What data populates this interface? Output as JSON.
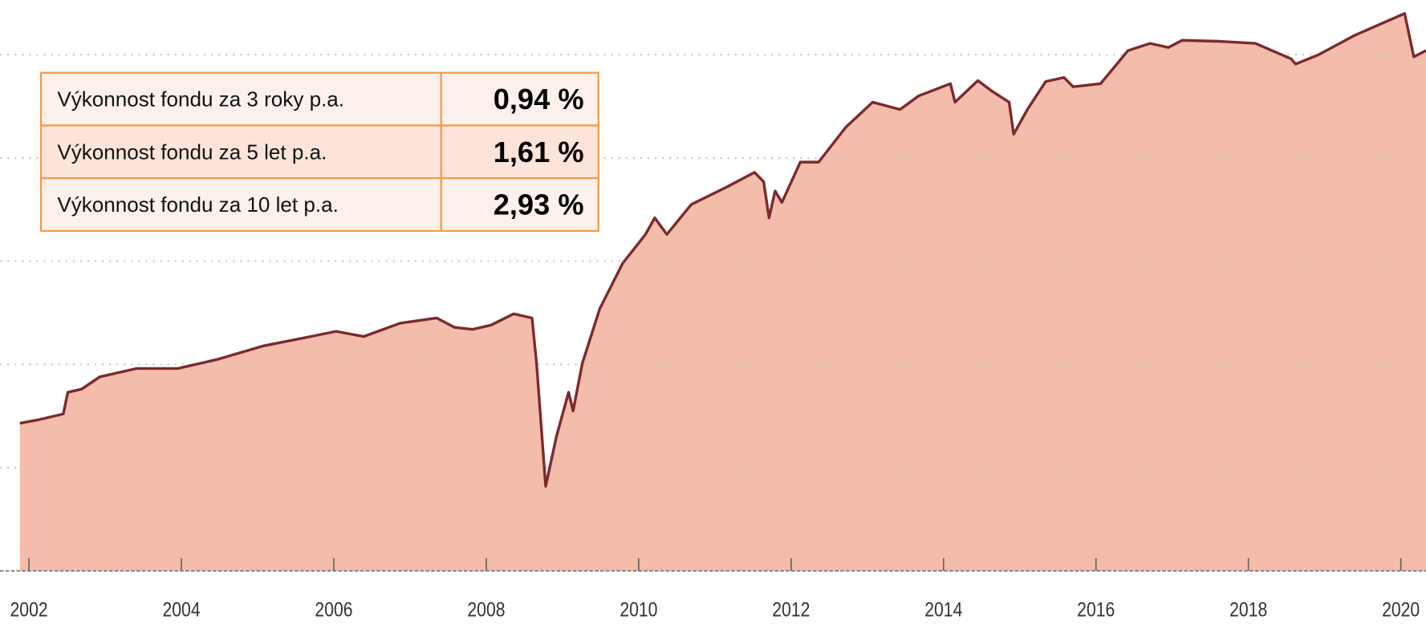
{
  "chart_data": {
    "type": "area",
    "x": [
      2001.88,
      2002.1,
      2002.45,
      2002.51,
      2002.69,
      2002.93,
      2003.41,
      2003.95,
      2004.48,
      2005.08,
      2005.56,
      2006.03,
      2006.39,
      2006.87,
      2007.35,
      2007.58,
      2007.82,
      2008.06,
      2008.36,
      2008.6,
      2008.66,
      2008.78,
      2008.92,
      2009.08,
      2009.14,
      2009.26,
      2009.49,
      2009.79,
      2010.09,
      2010.21,
      2010.37,
      2010.69,
      2011.16,
      2011.52,
      2011.64,
      2011.71,
      2011.79,
      2011.88,
      2012.12,
      2012.36,
      2012.72,
      2013.07,
      2013.43,
      2013.67,
      2014.09,
      2014.15,
      2014.45,
      2014.63,
      2014.86,
      2014.92,
      2015.1,
      2015.34,
      2015.58,
      2015.7,
      2016.06,
      2016.42,
      2016.71,
      2016.95,
      2017.13,
      2017.61,
      2018.09,
      2018.56,
      2018.62,
      2018.92,
      2019.4,
      2020.05,
      2020.17,
      2020.33
    ],
    "values": [
      1.43,
      1.46,
      1.52,
      1.73,
      1.76,
      1.88,
      1.96,
      1.96,
      2.05,
      2.18,
      2.25,
      2.32,
      2.27,
      2.4,
      2.45,
      2.36,
      2.34,
      2.38,
      2.49,
      2.45,
      2.01,
      0.82,
      1.3,
      1.73,
      1.55,
      2.01,
      2.54,
      2.98,
      3.26,
      3.42,
      3.26,
      3.55,
      3.72,
      3.86,
      3.77,
      3.42,
      3.68,
      3.57,
      3.96,
      3.96,
      4.3,
      4.54,
      4.47,
      4.6,
      4.72,
      4.54,
      4.75,
      4.65,
      4.54,
      4.23,
      4.47,
      4.74,
      4.78,
      4.69,
      4.72,
      5.04,
      5.11,
      5.07,
      5.14,
      5.13,
      5.11,
      4.96,
      4.91,
      5.0,
      5.19,
      5.4,
      4.98,
      5.04
    ],
    "color": "#7a2a2e",
    "fill": "#f4bcaa",
    "xlim": [
      2001.62,
      2020.33
    ],
    "xticks": [
      2002,
      2004,
      2006,
      2008,
      2010,
      2012,
      2014,
      2016,
      2018,
      2020
    ],
    "ylim": [
      0,
      5.53
    ],
    "yticks": [
      0,
      1,
      2,
      3,
      4,
      5
    ],
    "grid": true
  },
  "table": {
    "rows": [
      [
        "Výkonnost fondu za 3 roky p.a.",
        "0,94 %"
      ],
      [
        "Výkonnost fondu za 5 let p.a.",
        "1,61 %"
      ],
      [
        "Výkonnost fondu za 10 let p.a.",
        "2,93 %"
      ]
    ]
  }
}
